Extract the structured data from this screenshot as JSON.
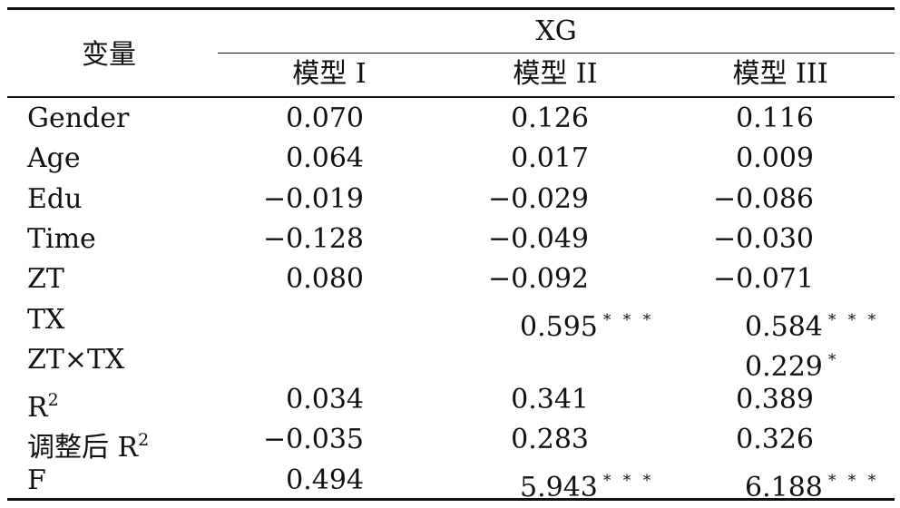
{
  "table": {
    "stub_header": "变量",
    "group_header": "XG",
    "columns": [
      "模型 I",
      "模型 II",
      "模型 III"
    ],
    "rows": [
      {
        "label": "Gender",
        "values": [
          {
            "v": "0.070",
            "s": ""
          },
          {
            "v": "0.126",
            "s": ""
          },
          {
            "v": "0.116",
            "s": ""
          }
        ]
      },
      {
        "label": "Age",
        "values": [
          {
            "v": "0.064",
            "s": ""
          },
          {
            "v": "0.017",
            "s": ""
          },
          {
            "v": "0.009",
            "s": ""
          }
        ]
      },
      {
        "label": "Edu",
        "values": [
          {
            "v": "−0.019",
            "s": ""
          },
          {
            "v": "−0.029",
            "s": ""
          },
          {
            "v": "−0.086",
            "s": ""
          }
        ]
      },
      {
        "label": "Time",
        "values": [
          {
            "v": "−0.128",
            "s": ""
          },
          {
            "v": "−0.049",
            "s": ""
          },
          {
            "v": "−0.030",
            "s": ""
          }
        ]
      },
      {
        "label": "ZT",
        "values": [
          {
            "v": "0.080",
            "s": ""
          },
          {
            "v": "−0.092",
            "s": ""
          },
          {
            "v": "−0.071",
            "s": ""
          }
        ]
      },
      {
        "label": "TX",
        "values": [
          {
            "v": "",
            "s": ""
          },
          {
            "v": "0.595",
            "s": "* * *"
          },
          {
            "v": "0.584",
            "s": "* * *"
          }
        ]
      },
      {
        "label": "ZT×TX",
        "values": [
          {
            "v": "",
            "s": ""
          },
          {
            "v": "",
            "s": ""
          },
          {
            "v": "0.229",
            "s": "*"
          }
        ]
      },
      {
        "label": "R",
        "sup": "2",
        "values": [
          {
            "v": "0.034",
            "s": ""
          },
          {
            "v": "0.341",
            "s": ""
          },
          {
            "v": "0.389",
            "s": ""
          }
        ]
      },
      {
        "label": "调整后 R",
        "sup": "2",
        "values": [
          {
            "v": "−0.035",
            "s": ""
          },
          {
            "v": "0.283",
            "s": ""
          },
          {
            "v": "0.326",
            "s": ""
          }
        ]
      },
      {
        "label": "F",
        "values": [
          {
            "v": "0.494",
            "s": ""
          },
          {
            "v": "5.943",
            "s": "* * *"
          },
          {
            "v": "6.188",
            "s": "* * *"
          }
        ]
      }
    ]
  }
}
